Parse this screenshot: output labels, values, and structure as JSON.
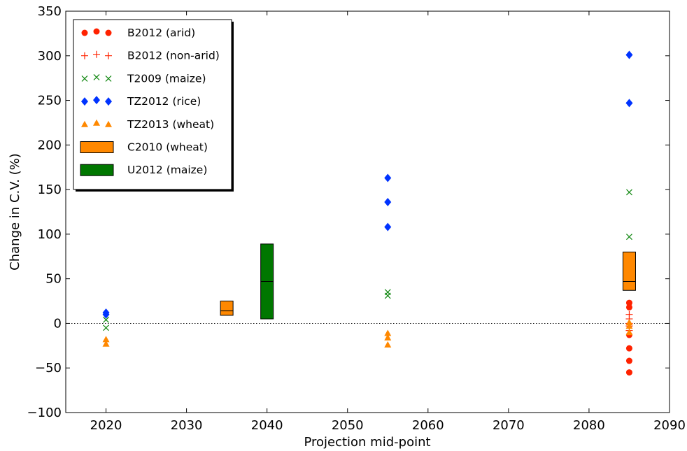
{
  "chart_data": {
    "type": "scatter",
    "title": "",
    "xlabel": "Projection mid-point",
    "ylabel": "Change in C.V. (%)",
    "xlim": [
      2015,
      2090
    ],
    "ylim": [
      -100,
      350
    ],
    "xticks": [
      2020,
      2030,
      2040,
      2050,
      2060,
      2070,
      2080,
      2090
    ],
    "yticks": [
      -100,
      -50,
      0,
      50,
      100,
      150,
      200,
      250,
      300,
      350
    ],
    "zero_line": true,
    "grid": false,
    "legend_position": "top-left",
    "point_series": [
      {
        "name": "B2012 (arid)",
        "marker": "circle",
        "color": "#ff2200",
        "points": [
          [
            2085,
            23
          ],
          [
            2085,
            18
          ],
          [
            2085,
            -13
          ],
          [
            2085,
            -28
          ],
          [
            2085,
            -42
          ],
          [
            2085,
            -55
          ]
        ]
      },
      {
        "name": "B2012 (non-arid)",
        "marker": "plus",
        "color": "#ff2200",
        "points": [
          [
            2085,
            10
          ],
          [
            2085,
            5
          ],
          [
            2085,
            0
          ],
          [
            2085,
            -3
          ],
          [
            2085,
            -8
          ]
        ]
      },
      {
        "name": "T2009 (maize)",
        "marker": "x",
        "color": "#118811",
        "points": [
          [
            2020,
            4
          ],
          [
            2020,
            -5
          ],
          [
            2055,
            35
          ],
          [
            2055,
            31
          ],
          [
            2085,
            147
          ],
          [
            2085,
            97
          ]
        ]
      },
      {
        "name": "TZ2012 (rice)",
        "marker": "diamond",
        "color": "#0033ff",
        "points": [
          [
            2020,
            12
          ],
          [
            2020,
            10
          ],
          [
            2055,
            163
          ],
          [
            2055,
            136
          ],
          [
            2055,
            108
          ],
          [
            2085,
            301
          ],
          [
            2085,
            247
          ]
        ]
      },
      {
        "name": "TZ2013 (wheat)",
        "marker": "triangle",
        "color": "#ff8800",
        "points": [
          [
            2020,
            -18
          ],
          [
            2020,
            -23
          ],
          [
            2055,
            -11
          ],
          [
            2055,
            -16
          ],
          [
            2055,
            -24
          ],
          [
            2085,
            1
          ],
          [
            2085,
            -3
          ],
          [
            2085,
            -10
          ]
        ]
      }
    ],
    "box_series": [
      {
        "name": "C2010 (wheat)",
        "color": "#ff8800",
        "boxes": [
          {
            "x": 2035,
            "low": 9,
            "high": 25,
            "mid": 14
          },
          {
            "x": 2085,
            "low": 37,
            "high": 80,
            "mid": 47
          }
        ]
      },
      {
        "name": "U2012 (maize)",
        "color": "#007700",
        "boxes": [
          {
            "x": 2040,
            "low": 5,
            "high": 89,
            "mid": 47
          }
        ]
      }
    ]
  }
}
